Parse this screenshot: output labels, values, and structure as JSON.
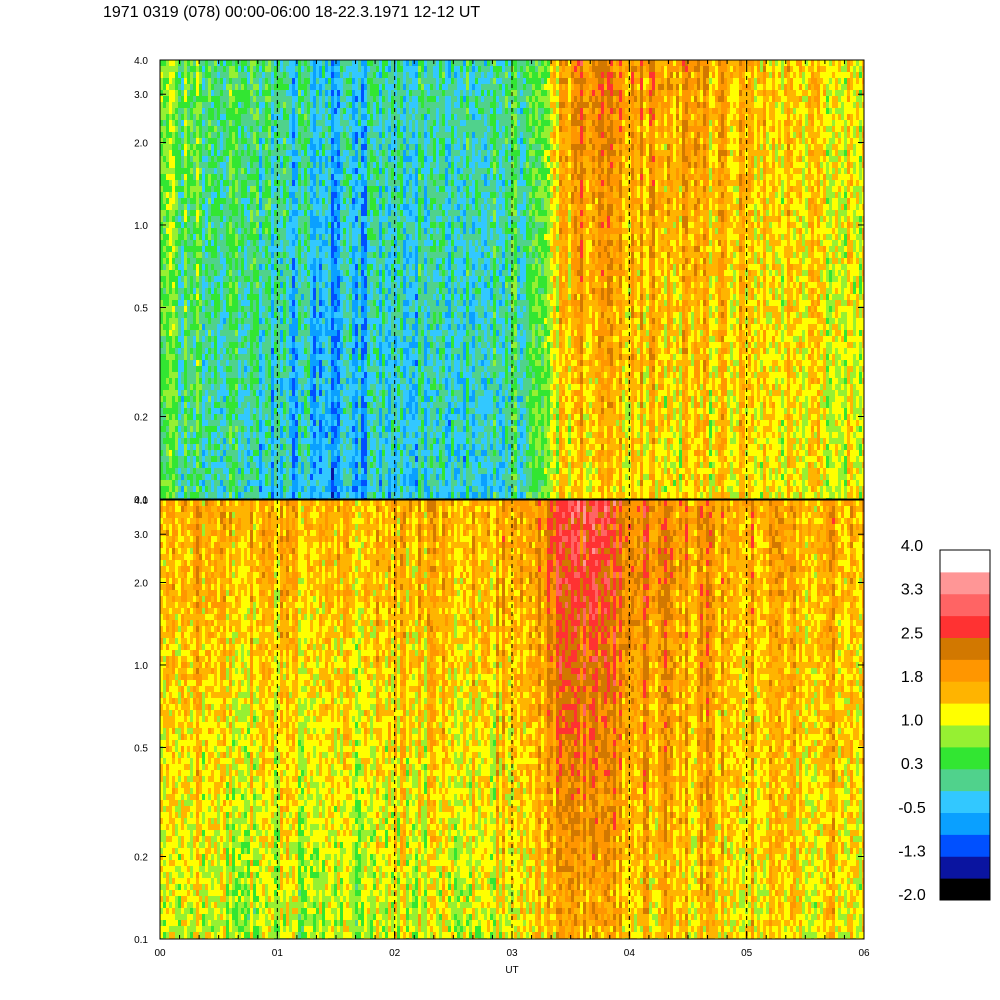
{
  "chart_data": {
    "type": "heatmap",
    "title": "1971 0319 (078) 00:00-06:00 18-22.3.1971  12-12 UT",
    "xlabel": "UT",
    "x_ticks": [
      "00",
      "01",
      "02",
      "03",
      "04",
      "05",
      "06"
    ],
    "xlim": [
      0,
      6
    ],
    "y_scale": "log",
    "ylim": [
      0.1,
      4.0
    ],
    "y_ticks": [
      "0.1",
      "0.2",
      "0.5",
      "1.0",
      "2.0",
      "3.0",
      "4.0"
    ],
    "grid": "vertical dashed lines at each hour",
    "panels": [
      {
        "name": "upper",
        "level_profile": {
          "hours": [
            0,
            0.5,
            1.0,
            1.5,
            2.0,
            2.5,
            3.0,
            3.2,
            3.4,
            3.6,
            4.0,
            4.5,
            5.0,
            5.5,
            6.0
          ],
          "low_freq_levels": [
            0.2,
            0.1,
            -0.4,
            -0.6,
            -0.3,
            -0.2,
            -0.1,
            0.5,
            1.2,
            1.4,
            1.4,
            1.2,
            1.3,
            1.2,
            1.1
          ],
          "high_freq_levels": [
            0.6,
            0.4,
            0.0,
            -0.3,
            -0.1,
            0.0,
            0.2,
            0.4,
            1.6,
            2.3,
            2.0,
            1.8,
            1.6,
            1.4,
            1.3
          ]
        }
      },
      {
        "name": "lower",
        "level_profile": {
          "hours": [
            0,
            0.5,
            1.0,
            1.5,
            2.0,
            2.5,
            3.0,
            3.2,
            3.4,
            3.6,
            4.0,
            4.5,
            5.0,
            5.5,
            6.0
          ],
          "low_freq_levels": [
            1.1,
            1.0,
            0.9,
            0.8,
            1.0,
            1.0,
            1.2,
            1.4,
            1.5,
            1.6,
            1.5,
            1.5,
            1.4,
            1.4,
            1.3
          ],
          "high_freq_levels": [
            1.7,
            1.8,
            1.7,
            1.5,
            1.7,
            1.7,
            1.8,
            1.9,
            2.6,
            2.8,
            2.4,
            2.0,
            1.9,
            1.8,
            1.8
          ]
        }
      }
    ],
    "colorbar": {
      "tick_labels": [
        "4.0",
        "3.3",
        "2.5",
        "1.8",
        "1.0",
        "0.3",
        "-0.5",
        "-1.3",
        "-2.0"
      ],
      "range": [
        -2.0,
        4.0
      ],
      "colors": [
        "#000000",
        "#0a14a0",
        "#0050ff",
        "#0aa0ff",
        "#32c8ff",
        "#50d28c",
        "#32e632",
        "#96f032",
        "#ffff00",
        "#ffb400",
        "#ff9600",
        "#d27800",
        "#ff3232",
        "#ff6464",
        "#ff9696",
        "#ffffff"
      ]
    }
  }
}
